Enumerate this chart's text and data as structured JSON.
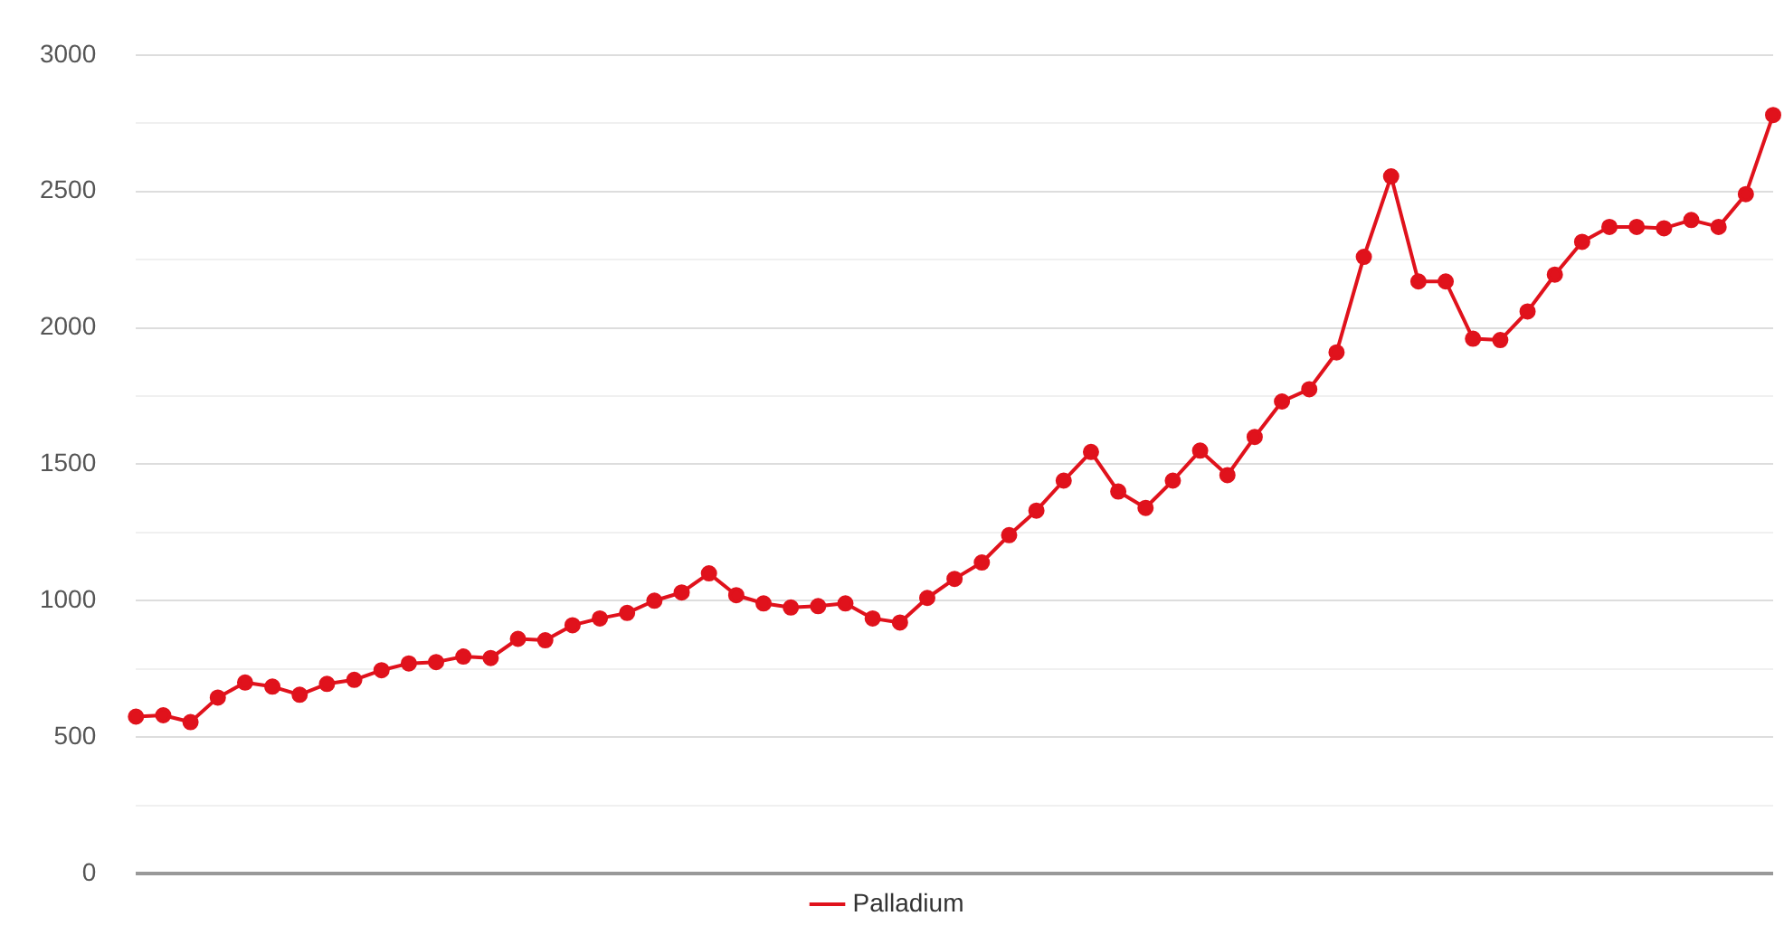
{
  "chart_data": {
    "type": "line",
    "categories": [
      null,
      null,
      null,
      null,
      null,
      null,
      null,
      null,
      null,
      null,
      null,
      null,
      null,
      null,
      null,
      null,
      null,
      null,
      null,
      null,
      null,
      null,
      null,
      null,
      null,
      null,
      null,
      null,
      null,
      null,
      null,
      null,
      null,
      null,
      null,
      null,
      null,
      null,
      null,
      null,
      null,
      null,
      null,
      null,
      null,
      null,
      null,
      null,
      null,
      null,
      null,
      null,
      null,
      null,
      null,
      null,
      null,
      null,
      null,
      null,
      null
    ],
    "series": [
      {
        "name": "Palladium",
        "color": "#e0121c",
        "values": [
          575,
          580,
          555,
          645,
          700,
          685,
          655,
          695,
          710,
          745,
          770,
          775,
          795,
          790,
          860,
          855,
          910,
          935,
          955,
          1000,
          1030,
          1100,
          1020,
          990,
          975,
          980,
          990,
          935,
          920,
          1010,
          1080,
          1140,
          1240,
          1330,
          1440,
          1545,
          1400,
          1340,
          1440,
          1550,
          1460,
          1600,
          1730,
          1775,
          1910,
          2260,
          2555,
          2170,
          2170,
          1960,
          1955,
          2060,
          2195,
          2315,
          2370,
          2370,
          2365,
          2395,
          2370,
          2490,
          2780
        ]
      }
    ],
    "ylim": [
      0,
      3000
    ],
    "yticks": [
      0,
      {
        "value": 250,
        "label": null
      },
      500,
      {
        "value": 750,
        "label": null
      },
      1000,
      {
        "value": 1250,
        "label": null
      },
      1500,
      {
        "value": 1750,
        "label": null
      },
      2000,
      {
        "value": 2250,
        "label": null
      },
      2500,
      {
        "value": 2750,
        "label": null
      },
      3000
    ],
    "grid": "y",
    "legend": "bottom",
    "marker": "circle",
    "line_style": "solid"
  }
}
